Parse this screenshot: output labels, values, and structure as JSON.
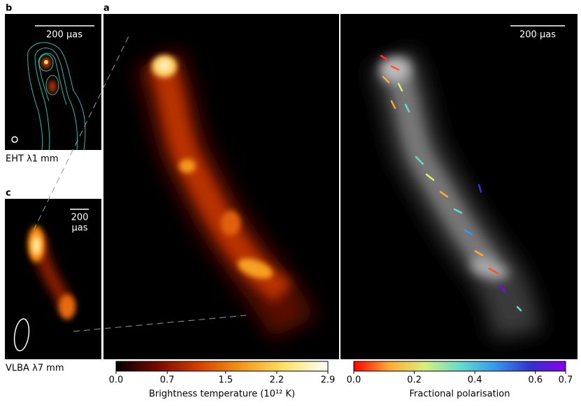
{
  "panels": {
    "b": {
      "letter": "b",
      "scale": "200 μas",
      "caption": "EHT λ1 mm"
    },
    "a": {
      "letter": "a",
      "scale": "200 μas"
    },
    "c": {
      "letter": "c",
      "scale": [
        "200",
        "μas"
      ],
      "caption": "VLBA λ7 mm"
    }
  },
  "chart_data": [
    {
      "type": "colorbar",
      "xlabel": "Brightness temperature (10¹² K)",
      "xlim": [
        0,
        2.9
      ],
      "xticks": [
        {
          "value": 0,
          "label": "0.0"
        },
        {
          "value": 0.7,
          "label": "0.7"
        },
        {
          "value": 1.5,
          "label": "1.5"
        },
        {
          "value": 2.2,
          "label": "2.2"
        },
        {
          "value": 2.9,
          "label": "2.9"
        }
      ],
      "colors": [
        "#000000",
        "#7a0a00",
        "#d84300",
        "#f59a1c",
        "#fde36a",
        "#ffffff"
      ]
    },
    {
      "type": "colorbar",
      "xlabel": "Fractional polarisation",
      "xlim": [
        0,
        0.7
      ],
      "xticks": [
        {
          "value": 0,
          "label": "0.0"
        },
        {
          "value": 0.2,
          "label": "0.2"
        },
        {
          "value": 0.4,
          "label": "0.4"
        },
        {
          "value": 0.6,
          "label": "0.6"
        },
        {
          "value": 0.7,
          "label": "0.7"
        }
      ],
      "colors": [
        "#ff0000",
        "#ffaa33",
        "#d9f07a",
        "#66ddcc",
        "#3399ee",
        "#3333cc",
        "#8800ee"
      ]
    }
  ]
}
